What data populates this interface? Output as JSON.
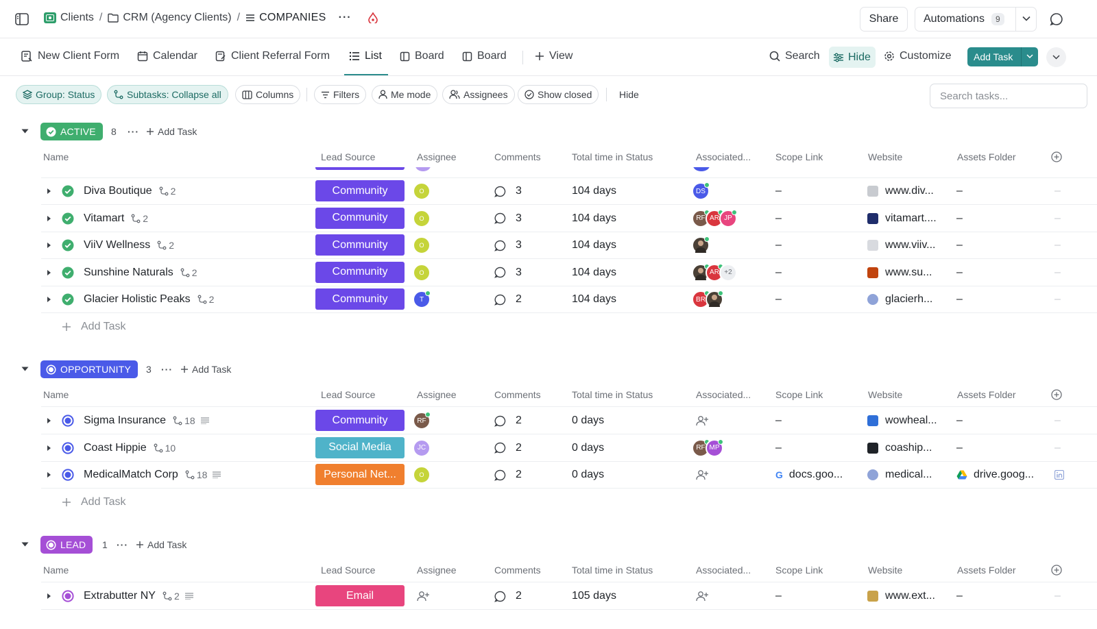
{
  "breadcrumb": {
    "space": "Clients",
    "folder": "CRM (Agency Clients)",
    "list": "COMPANIES"
  },
  "header": {
    "share": "Share",
    "automations": "Automations",
    "automations_count": "9"
  },
  "views": {
    "tabs": [
      "New Client Form",
      "Calendar",
      "Client Referral Form",
      "List",
      "Board",
      "Board",
      "View"
    ],
    "active": "List",
    "search": "Search",
    "hide": "Hide",
    "customize": "Customize",
    "add_task": "Add Task"
  },
  "filters": {
    "group": "Group: Status",
    "subtasks": "Subtasks: Collapse all",
    "columns": "Columns",
    "filters": "Filters",
    "me_mode": "Me mode",
    "assignees": "Assignees",
    "show_closed": "Show closed",
    "hide": "Hide",
    "search_placeholder": "Search tasks..."
  },
  "columns": [
    "Name",
    "Lead Source",
    "Assignee",
    "Comments",
    "Total time in Status",
    "Associated...",
    "Scope Link",
    "Website",
    "Assets Folder"
  ],
  "add_task_label": "Add Task",
  "dash": "–",
  "groups": {
    "active": {
      "label": "ACTIVE",
      "count": "8",
      "color": "#3fae6e",
      "rows": [
        {
          "name": "Diva Boutique",
          "subtasks": "2",
          "lead": "Community",
          "assignee": "O",
          "comments": "3",
          "time": "104 days",
          "assoc": [
            "DS"
          ],
          "scope": "–",
          "website": "www.div...",
          "assets": "–"
        },
        {
          "name": "Vitamart",
          "subtasks": "2",
          "lead": "Community",
          "assignee": "O",
          "comments": "3",
          "time": "104 days",
          "assoc": [
            "RF",
            "AR",
            "JP"
          ],
          "scope": "–",
          "website": "vitamart....",
          "assets": "–"
        },
        {
          "name": "ViiV Wellness",
          "subtasks": "2",
          "lead": "Community",
          "assignee": "O",
          "comments": "3",
          "time": "104 days",
          "assoc": [
            "photo"
          ],
          "scope": "–",
          "website": "www.viiv...",
          "assets": "–"
        },
        {
          "name": "Sunshine Naturals",
          "subtasks": "2",
          "lead": "Community",
          "assignee": "O",
          "comments": "3",
          "time": "104 days",
          "assoc": [
            "photo",
            "AR"
          ],
          "assoc_more": "+2",
          "scope": "–",
          "website": "www.su...",
          "assets": "–"
        },
        {
          "name": "Glacier Holistic Peaks",
          "subtasks": "2",
          "lead": "Community",
          "assignee": "T",
          "comments": "2",
          "time": "104 days",
          "assoc": [
            "BR",
            "photo"
          ],
          "scope": "–",
          "website": "glacierh...",
          "assets": "–"
        }
      ]
    },
    "opportunity": {
      "label": "OPPORTUNITY",
      "count": "3",
      "color": "#4a5ae8",
      "rows": [
        {
          "name": "Sigma Insurance",
          "subtasks": "18",
          "lead": "Community",
          "assignee": "RF",
          "comments": "2",
          "time": "0 days",
          "scope": "–",
          "website": "wowheal...",
          "assets": "–"
        },
        {
          "name": "Coast Hippie",
          "subtasks": "10",
          "lead": "Social Media",
          "assignee": "JC",
          "comments": "2",
          "time": "0 days",
          "assoc": [
            "RF",
            "MP"
          ],
          "scope": "–",
          "website": "coaship...",
          "assets": "–"
        },
        {
          "name": "MedicalMatch Corp",
          "subtasks": "18",
          "lead": "Personal Net...",
          "assignee": "O",
          "comments": "2",
          "time": "0 days",
          "scope": "docs.goo...",
          "website": "medical...",
          "assets": "drive.goog..."
        }
      ]
    },
    "lead": {
      "label": "LEAD",
      "count": "1",
      "color": "#a54fd6",
      "rows": [
        {
          "name": "Extrabutter NY",
          "subtasks": "2",
          "lead": "Email",
          "comments": "2",
          "time": "105 days",
          "scope": "–",
          "website": "www.ext...",
          "assets": "–"
        }
      ]
    }
  },
  "colors": {
    "community": "#6b48e8",
    "social_media": "#4fb3c9",
    "personal_network": "#f07f2e",
    "email": "#e8457e",
    "accent": "#2a8c8c"
  }
}
